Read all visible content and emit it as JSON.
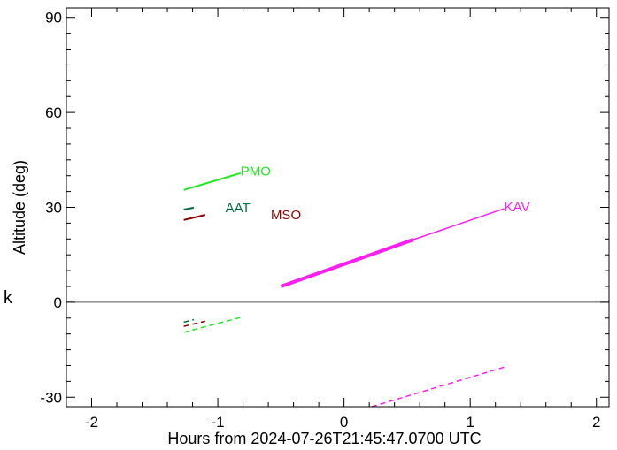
{
  "chart_data": {
    "type": "line",
    "xlabel": "Hours from 2024-07-26T21:45:47.0700 UTC",
    "ylabel": "Altitude (deg)",
    "side_label": "k",
    "xlim": [
      -2.2,
      2.1
    ],
    "ylim": [
      -33,
      93
    ],
    "xticks": [
      -2,
      -1,
      0,
      1,
      2
    ],
    "yticks": [
      -30,
      0,
      30,
      60,
      90
    ],
    "grid": false,
    "zero_line": true,
    "series": [
      {
        "name": "PMO",
        "color": "#22e622",
        "segments": [
          {
            "x": [
              -1.27,
              -0.82
            ],
            "y": [
              35.5,
              40.8
            ],
            "style": "solid",
            "width": 2
          }
        ],
        "below": {
          "x": [
            -1.27,
            -0.82
          ],
          "y": [
            -9.5,
            -4.8
          ]
        }
      },
      {
        "name": "AAT",
        "color": "#006b3f",
        "segments": [
          {
            "x": [
              -1.27,
              -1.19
            ],
            "y": [
              29.3,
              29.9
            ],
            "style": "solid",
            "width": 2
          }
        ],
        "below": {
          "x": [
            -1.27,
            -1.19
          ],
          "y": [
            -6.3,
            -5.5
          ]
        }
      },
      {
        "name": "MSO",
        "color": "#8b0000",
        "segments": [
          {
            "x": [
              -1.27,
              -1.1
            ],
            "y": [
              26.0,
              27.6
            ],
            "style": "solid",
            "width": 2
          }
        ],
        "below": {
          "x": [
            -1.27,
            -1.1
          ],
          "y": [
            -7.6,
            -6.0
          ]
        }
      },
      {
        "name": "KAV",
        "color": "#ff1ef0",
        "segments": [
          {
            "x": [
              -0.5,
              0.55
            ],
            "y": [
              5.0,
              19.8
            ],
            "style": "solid",
            "width": 4
          },
          {
            "x": [
              0.55,
              1.27
            ],
            "y": [
              19.8,
              29.6
            ],
            "style": "solid",
            "width": 1.5
          }
        ],
        "below": {
          "x": [
            0.22,
            1.27
          ],
          "y": [
            -33.0,
            -20.5
          ]
        }
      }
    ],
    "labels": [
      {
        "text": "PMO",
        "x": -0.82,
        "y": 41.5,
        "color": "#22e622"
      },
      {
        "text": "AAT",
        "x": -0.94,
        "y": 29.9,
        "color": "#006b3f"
      },
      {
        "text": "MSO",
        "x": -0.58,
        "y": 27.6,
        "color": "#8b0000"
      },
      {
        "text": "KAV",
        "x": 1.27,
        "y": 30.2,
        "color": "#ff1ef0"
      }
    ]
  }
}
